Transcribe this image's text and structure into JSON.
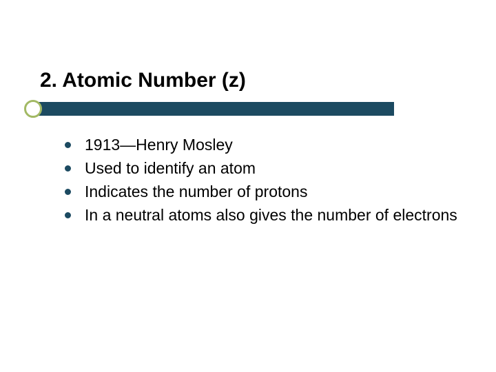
{
  "slide": {
    "title": "2.  Atomic Number (z)",
    "title_fontsize": 30,
    "title_fontweight": "bold",
    "title_color": "#000000",
    "underline_color": "#1c4a61",
    "accent_circle_border_color": "#a2b964",
    "background_color": "#ffffff",
    "bullets": [
      "1913—Henry Mosley",
      "Used to identify an atom",
      "Indicates the number of protons",
      "In a neutral atoms also gives the number of electrons"
    ],
    "bullet_fontsize": 23,
    "bullet_color": "#000000",
    "bullet_dot_color": "#1c4a61"
  }
}
